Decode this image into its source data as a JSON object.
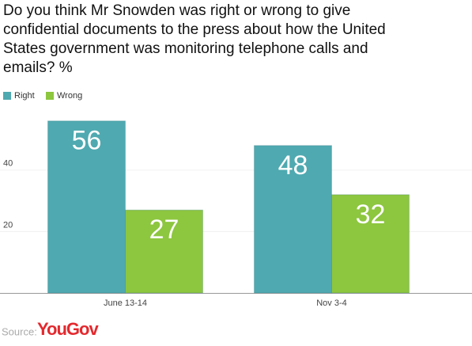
{
  "chart_data": {
    "type": "bar",
    "title_lines": [
      "Do you think Mr Snowden was right or wrong to give",
      "confidential documents to the press about how the United",
      "States government was monitoring telephone calls and",
      "emails? %"
    ],
    "categories": [
      "June 13-14",
      "Nov 3-4"
    ],
    "series": [
      {
        "name": "Right",
        "color": "#4fa9b0",
        "values": [
          56,
          48
        ]
      },
      {
        "name": "Wrong",
        "color": "#8dc63f",
        "values": [
          27,
          32
        ]
      }
    ],
    "ylim": [
      0,
      58
    ],
    "yticks": [
      20,
      40
    ],
    "grid": true,
    "source_label": "Source:",
    "source_name": "YouGov"
  }
}
